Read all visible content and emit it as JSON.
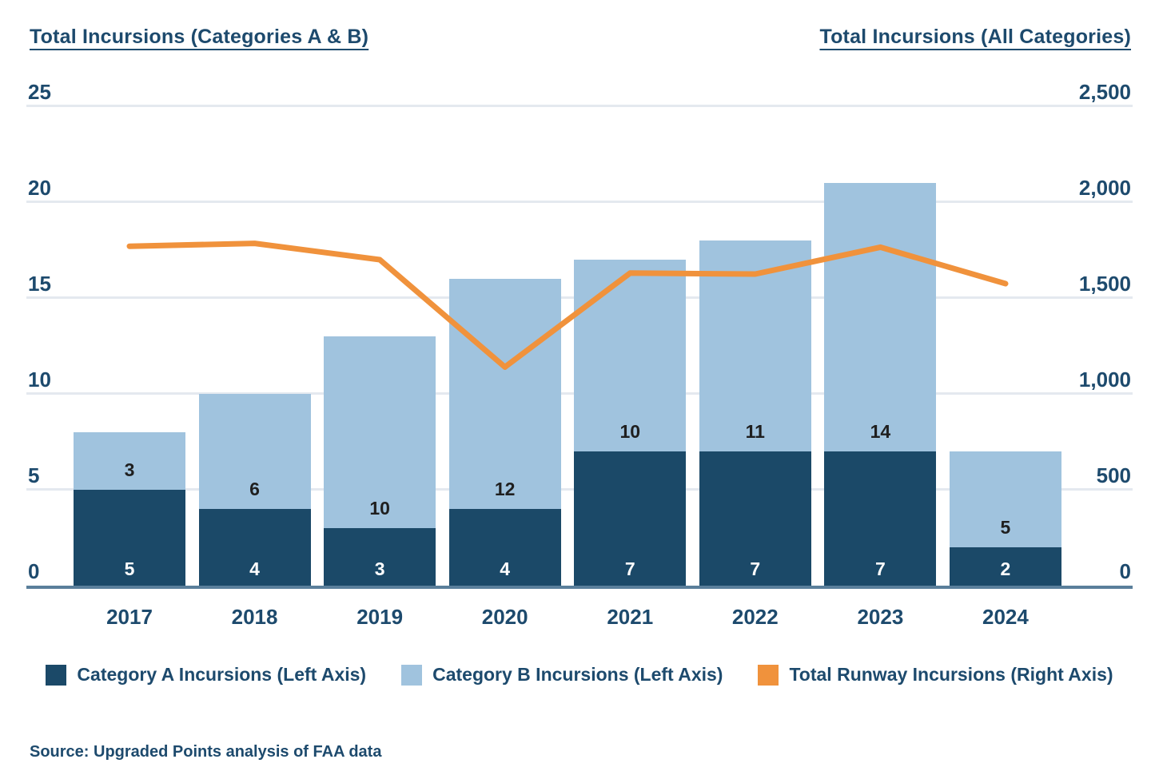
{
  "chart_data": {
    "type": "combo-stacked-bar-line",
    "categories": [
      "2017",
      "2018",
      "2019",
      "2020",
      "2021",
      "2022",
      "2023",
      "2024"
    ],
    "series": [
      {
        "name": "Category A Incursions (Left Axis)",
        "type": "bar",
        "stack_order": "bottom",
        "axis": "left",
        "color": "#1b4968",
        "label_color": "#ffffff",
        "values": [
          5,
          4,
          3,
          4,
          7,
          7,
          7,
          2
        ]
      },
      {
        "name": "Category B Incursions (Left Axis)",
        "type": "bar",
        "stack_order": "top",
        "axis": "left",
        "color": "#a0c3de",
        "label_color": "#1f1f1f",
        "values": [
          3,
          6,
          10,
          12,
          10,
          11,
          14,
          5
        ]
      },
      {
        "name": "Total Runway Incursions (Right Axis)",
        "type": "line",
        "axis": "right",
        "color": "#f0923c",
        "values": [
          1770,
          1785,
          1700,
          1140,
          1630,
          1625,
          1765,
          1575
        ]
      }
    ],
    "left_axis": {
      "title": "Total Incursions (Categories A & B)",
      "min": 0,
      "max": 25,
      "ticks": [
        {
          "value": 0,
          "label": "0"
        },
        {
          "value": 5,
          "label": "5"
        },
        {
          "value": 10,
          "label": "10"
        },
        {
          "value": 15,
          "label": "15"
        },
        {
          "value": 20,
          "label": "20"
        },
        {
          "value": 25,
          "label": "25"
        }
      ]
    },
    "right_axis": {
      "title": "Total Incursions (All Categories)",
      "min": 0,
      "max": 2500,
      "ticks": [
        {
          "value": 0,
          "label": "0"
        },
        {
          "value": 500,
          "label": "500"
        },
        {
          "value": 1000,
          "label": "1,000"
        },
        {
          "value": 1500,
          "label": "1,500"
        },
        {
          "value": 2000,
          "label": "2,000"
        },
        {
          "value": 2500,
          "label": "2,500"
        }
      ]
    },
    "grid": true,
    "legend_position": "bottom"
  },
  "source": "Source: Upgraded Points analysis of FAA data",
  "colors": {
    "title_text": "#1d4a6d",
    "axis_text": "#1d4a6d",
    "bar_dark": "#1b4968",
    "bar_light": "#a0c3de",
    "line_orange": "#f0923c",
    "gridline": "#e4e9ef",
    "axis_line": "#5a7f9b",
    "background": "#ffffff"
  }
}
